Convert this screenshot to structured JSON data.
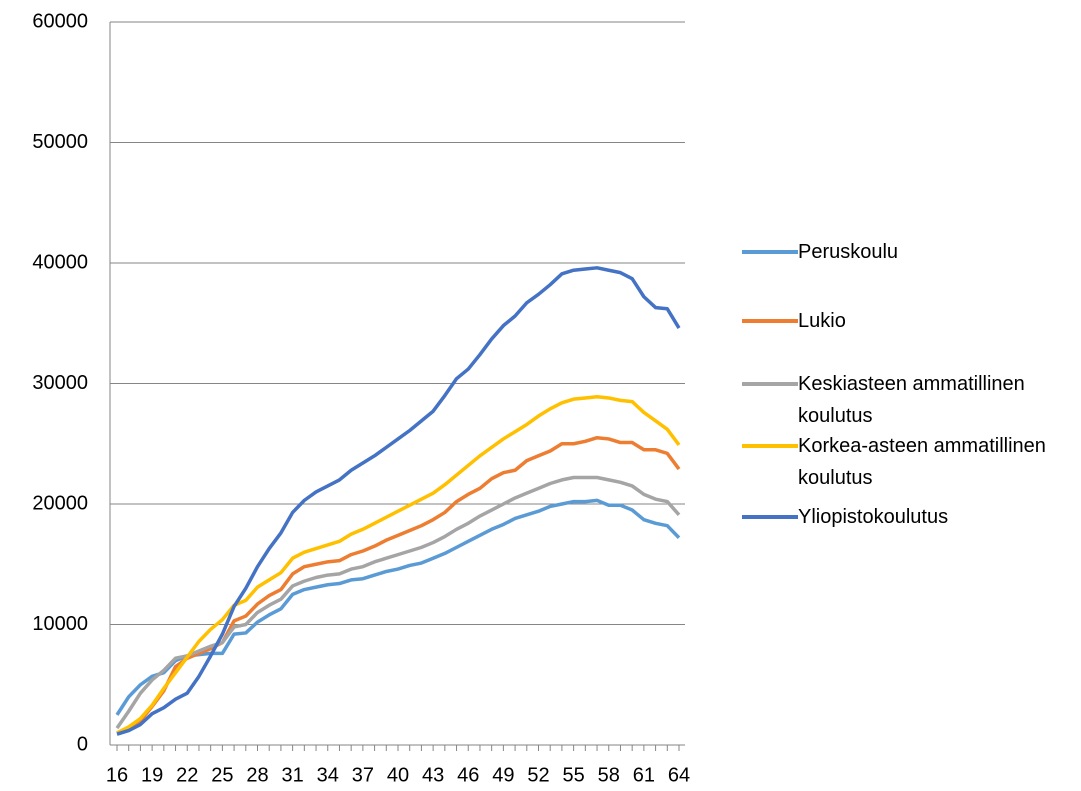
{
  "chart_data": {
    "type": "line",
    "categories": [
      16,
      null,
      null,
      19,
      null,
      null,
      22,
      null,
      null,
      25,
      null,
      null,
      28,
      null,
      null,
      31,
      null,
      null,
      34,
      null,
      null,
      37,
      null,
      null,
      40,
      null,
      null,
      43,
      null,
      null,
      46,
      null,
      null,
      49,
      null,
      null,
      52,
      null,
      null,
      55,
      null,
      null,
      58,
      null,
      null,
      61,
      null,
      null,
      64
    ],
    "series": [
      {
        "name": "Peruskoulu",
        "color": "#5b9bd5",
        "values": [
          2500,
          4000,
          5000,
          5700,
          6000,
          7000,
          7400,
          7500,
          7600,
          7600,
          9200,
          9300,
          10200,
          10800,
          11300,
          12500,
          12900,
          13100,
          13300,
          13400,
          13700,
          13800,
          14100,
          14400,
          14600,
          14900,
          15100,
          15500,
          15900,
          16400,
          16900,
          17400,
          17900,
          18300,
          18800,
          19100,
          19400,
          19800,
          20000,
          20200,
          20200,
          20300,
          19900,
          19900,
          19500,
          18700,
          18400,
          18200,
          17200
        ]
      },
      {
        "name": "Lukio",
        "color": "#ed7d31",
        "values": [
          1000,
          1300,
          2000,
          3200,
          4500,
          6500,
          7200,
          7600,
          8000,
          8500,
          10300,
          10700,
          11700,
          12400,
          12900,
          14200,
          14800,
          15000,
          15200,
          15300,
          15800,
          16100,
          16500,
          17000,
          17400,
          17800,
          18200,
          18700,
          19300,
          20200,
          20800,
          21300,
          22100,
          22600,
          22800,
          23600,
          24000,
          24400,
          25000,
          25000,
          25200,
          25500,
          25400,
          25100,
          25100,
          24500,
          24500,
          24200,
          22900
        ]
      },
      {
        "name": "Keskiasteen ammatillinen koulutus",
        "color": "#a5a5a5",
        "values": [
          1400,
          2800,
          4300,
          5400,
          6200,
          7200,
          7400,
          7800,
          8200,
          8500,
          9800,
          10000,
          11000,
          11600,
          12100,
          13200,
          13600,
          13900,
          14100,
          14200,
          14600,
          14800,
          15200,
          15500,
          15800,
          16100,
          16400,
          16800,
          17300,
          17900,
          18400,
          19000,
          19500,
          20000,
          20500,
          20900,
          21300,
          21700,
          22000,
          22200,
          22200,
          22200,
          22000,
          21800,
          21500,
          20800,
          20400,
          20200,
          19100
        ]
      },
      {
        "name": "Korkea-asteen ammatillinen koulutus",
        "color": "#ffc000",
        "values": [
          1000,
          1500,
          2200,
          3300,
          4700,
          6000,
          7300,
          8600,
          9600,
          10400,
          11600,
          12000,
          13100,
          13700,
          14300,
          15500,
          16000,
          16300,
          16600,
          16900,
          17500,
          17900,
          18400,
          18900,
          19400,
          19900,
          20400,
          20900,
          21600,
          22400,
          23200,
          24000,
          24700,
          25400,
          26000,
          26600,
          27300,
          27900,
          28400,
          28700,
          28800,
          28900,
          28800,
          28600,
          28500,
          27600,
          26900,
          26200,
          24900
        ]
      },
      {
        "name": "Yliopistokoulutus",
        "color": "#4472c4",
        "values": [
          900,
          1200,
          1700,
          2600,
          3100,
          3800,
          4300,
          5700,
          7400,
          9200,
          11500,
          13000,
          14800,
          16300,
          17600,
          19300,
          20300,
          21000,
          21500,
          22000,
          22800,
          23400,
          24000,
          24700,
          25400,
          26100,
          26900,
          27700,
          29000,
          30400,
          31200,
          32400,
          33700,
          34800,
          35600,
          36700,
          37400,
          38200,
          39100,
          39400,
          39500,
          39600,
          39400,
          39200,
          38700,
          37200,
          36300,
          36200,
          34600
        ]
      }
    ],
    "ylim": [
      0,
      60000
    ],
    "yticks": [
      0,
      10000,
      20000,
      30000,
      40000,
      50000,
      60000
    ],
    "grid": true,
    "legend": "right"
  }
}
